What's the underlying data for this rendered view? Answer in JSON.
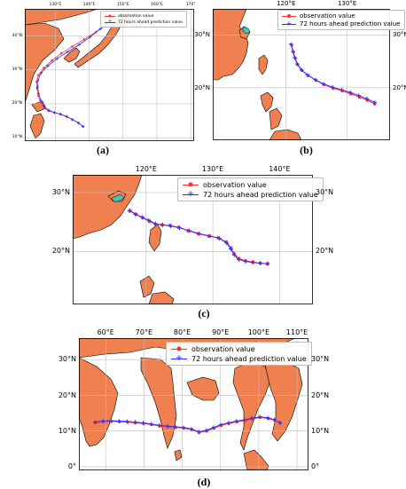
{
  "colors": {
    "land": "#f08050",
    "coast": "#000000",
    "grid": "#bfbfbf",
    "observation": "#ff3030",
    "prediction": "#3030ff",
    "lake": "#40c8c0"
  },
  "panels": [
    {
      "caption": "(a)",
      "lon_ticks": [
        "130°E",
        "140°E",
        "150°E",
        "160°E",
        "170°"
      ],
      "lat_ticks": [
        "40°N",
        "30°N",
        "20°N",
        "10°N"
      ],
      "legend": {
        "observation_label": "observation value",
        "prediction_label": "72 hours ahead prediction value"
      },
      "lon_range": [
        121,
        171
      ],
      "lat_range": [
        9,
        48
      ],
      "track": {
        "observation": [
          [
            138.2,
            13.3
          ],
          [
            136.8,
            14.4
          ],
          [
            135.0,
            15.4
          ],
          [
            133.3,
            16.3
          ],
          [
            131.5,
            17.0
          ],
          [
            129.7,
            17.4
          ],
          [
            128.0,
            17.9
          ],
          [
            126.6,
            18.8
          ],
          [
            125.6,
            20.5
          ],
          [
            125.0,
            22.4
          ],
          [
            124.6,
            24.6
          ],
          [
            124.5,
            26.5
          ],
          [
            125.0,
            28.5
          ],
          [
            126.6,
            30.6
          ],
          [
            129.0,
            32.8
          ],
          [
            131.8,
            34.9
          ],
          [
            135.0,
            36.9
          ],
          [
            138.5,
            39.0
          ],
          [
            142.0,
            41.2
          ],
          [
            145.5,
            43.5
          ]
        ],
        "prediction": [
          [
            138.2,
            13.3
          ],
          [
            136.9,
            14.3
          ],
          [
            135.1,
            15.3
          ],
          [
            133.4,
            16.2
          ],
          [
            131.6,
            16.9
          ],
          [
            129.8,
            17.4
          ],
          [
            128.1,
            18.1
          ],
          [
            126.7,
            19.2
          ],
          [
            125.7,
            21.0
          ],
          [
            125.1,
            23.0
          ],
          [
            124.8,
            25.0
          ],
          [
            124.9,
            27.0
          ],
          [
            125.8,
            29.1
          ],
          [
            127.8,
            31.2
          ],
          [
            130.5,
            33.3
          ],
          [
            133.6,
            35.3
          ],
          [
            137.0,
            37.4
          ],
          [
            140.3,
            39.7
          ],
          [
            143.3,
            42.1
          ],
          [
            146.2,
            44.2
          ]
        ]
      }
    },
    {
      "caption": "(b)",
      "lon_ticks": [
        "120°E",
        "130°E"
      ],
      "lat_ticks": [
        "30°N",
        "20°N"
      ],
      "legend": {
        "observation_label": "observation value",
        "prediction_label": "72 hours ahead prediction value"
      },
      "lon_range": [
        108,
        137
      ],
      "lat_range": [
        10,
        35
      ],
      "track": {
        "observation": [
          [
            134.5,
            16.9
          ],
          [
            133.3,
            17.6
          ],
          [
            132.0,
            18.2
          ],
          [
            130.6,
            18.8
          ],
          [
            129.2,
            19.4
          ],
          [
            127.7,
            19.9
          ],
          [
            126.2,
            20.6
          ],
          [
            124.9,
            21.4
          ],
          [
            123.6,
            22.3
          ],
          [
            122.6,
            23.3
          ],
          [
            121.9,
            24.4
          ],
          [
            121.5,
            25.6
          ],
          [
            121.2,
            26.8
          ],
          [
            120.9,
            28.1
          ]
        ],
        "prediction": [
          [
            134.5,
            17.2
          ],
          [
            133.2,
            17.9
          ],
          [
            131.9,
            18.5
          ],
          [
            130.5,
            19.1
          ],
          [
            129.1,
            19.6
          ],
          [
            127.6,
            20.1
          ],
          [
            126.1,
            20.7
          ],
          [
            124.8,
            21.5
          ],
          [
            123.5,
            22.4
          ],
          [
            122.5,
            23.4
          ],
          [
            121.8,
            24.5
          ],
          [
            121.4,
            25.7
          ],
          [
            121.1,
            26.9
          ],
          [
            120.8,
            28.3
          ]
        ]
      }
    },
    {
      "caption": "(c)",
      "lon_ticks": [
        "120°E",
        "130°E",
        "140°E"
      ],
      "lat_ticks": [
        "30°N",
        "20°N"
      ],
      "legend": {
        "observation_label": "observation value",
        "prediction_label": "72 hours ahead prediction value"
      },
      "lon_range": [
        109,
        145
      ],
      "lat_range": [
        11,
        33
      ],
      "track": {
        "observation": [
          [
            138.2,
            17.9
          ],
          [
            137.1,
            18.0
          ],
          [
            136.0,
            18.2
          ],
          [
            134.9,
            18.4
          ],
          [
            133.9,
            18.8
          ],
          [
            133.2,
            19.6
          ],
          [
            132.7,
            20.6
          ],
          [
            132.0,
            21.6
          ],
          [
            130.8,
            22.3
          ],
          [
            129.4,
            22.6
          ],
          [
            127.8,
            23.0
          ],
          [
            126.3,
            23.5
          ],
          [
            124.9,
            24.1
          ],
          [
            123.6,
            24.4
          ],
          [
            122.4,
            24.5
          ],
          [
            121.4,
            24.6
          ],
          [
            120.5,
            25.1
          ],
          [
            119.5,
            25.7
          ],
          [
            118.5,
            26.3
          ],
          [
            117.6,
            26.9
          ]
        ],
        "prediction": [
          [
            138.2,
            17.9
          ],
          [
            137.1,
            18.0
          ],
          [
            136.0,
            18.1
          ],
          [
            134.9,
            18.3
          ],
          [
            133.9,
            18.6
          ],
          [
            133.2,
            19.4
          ],
          [
            132.7,
            20.4
          ],
          [
            132.1,
            21.4
          ],
          [
            131.0,
            22.2
          ],
          [
            129.6,
            22.6
          ],
          [
            128.0,
            23.0
          ],
          [
            126.5,
            23.5
          ],
          [
            125.0,
            24.0
          ],
          [
            123.7,
            24.3
          ],
          [
            122.5,
            24.5
          ],
          [
            121.4,
            24.7
          ],
          [
            120.4,
            25.3
          ],
          [
            119.4,
            25.8
          ],
          [
            118.4,
            26.3
          ],
          [
            117.5,
            26.9
          ]
        ]
      }
    },
    {
      "caption": "(d)",
      "lon_ticks": [
        "60°E",
        "70°E",
        "80°E",
        "90°E",
        "100°E",
        "110°E"
      ],
      "lat_ticks": [
        "30°N",
        "20°N",
        "10°N",
        "0°"
      ],
      "legend": {
        "observation_label": "observation value",
        "prediction_label": "72 hours ahead prediction value"
      },
      "lon_range": [
        53,
        113
      ],
      "lat_range": [
        -1,
        36
      ],
      "track": {
        "observation": [
          [
            105.6,
            12.4
          ],
          [
            104.2,
            13.0
          ],
          [
            102.5,
            13.5
          ],
          [
            100.4,
            13.8
          ],
          [
            98.3,
            13.4
          ],
          [
            96.3,
            12.9
          ],
          [
            94.3,
            12.6
          ],
          [
            92.2,
            12.1
          ],
          [
            90.2,
            11.6
          ],
          [
            88.3,
            10.8
          ],
          [
            86.4,
            10.0
          ],
          [
            84.4,
            9.6
          ],
          [
            82.5,
            10.4
          ],
          [
            80.4,
            10.8
          ],
          [
            78.3,
            11.0
          ],
          [
            76.2,
            11.2
          ],
          [
            74.1,
            11.4
          ],
          [
            72.0,
            11.8
          ],
          [
            69.9,
            12.1
          ],
          [
            67.8,
            12.3
          ],
          [
            65.7,
            12.5
          ],
          [
            63.6,
            12.6
          ],
          [
            61.5,
            12.7
          ],
          [
            59.4,
            12.6
          ],
          [
            57.3,
            12.3
          ]
        ],
        "prediction": [
          [
            105.6,
            12.2
          ],
          [
            104.1,
            13.2
          ],
          [
            102.4,
            13.7
          ],
          [
            100.3,
            14.0
          ],
          [
            98.2,
            13.6
          ],
          [
            96.2,
            13.1
          ],
          [
            94.2,
            12.8
          ],
          [
            92.1,
            12.3
          ],
          [
            90.1,
            11.8
          ],
          [
            88.2,
            11.0
          ],
          [
            86.3,
            10.2
          ],
          [
            84.3,
            9.8
          ],
          [
            82.4,
            10.6
          ],
          [
            80.3,
            11.0
          ],
          [
            78.2,
            11.2
          ],
          [
            76.1,
            11.4
          ],
          [
            74.0,
            11.6
          ],
          [
            71.9,
            12.0
          ],
          [
            69.8,
            12.3
          ],
          [
            67.7,
            12.5
          ],
          [
            65.6,
            12.7
          ],
          [
            63.5,
            12.8
          ],
          [
            61.4,
            12.9
          ],
          [
            59.3,
            12.8
          ],
          [
            57.2,
            12.5
          ]
        ]
      }
    }
  ]
}
